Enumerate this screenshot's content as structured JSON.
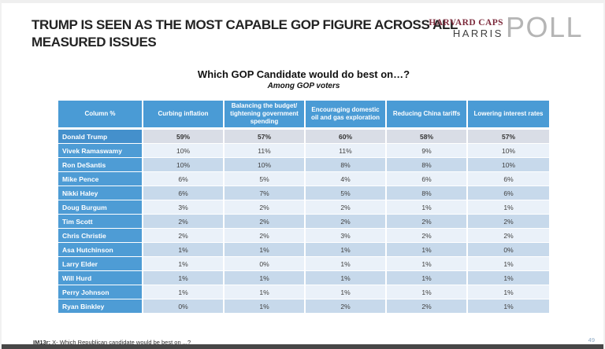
{
  "slide": {
    "title": "TRUMP IS SEEN AS THE MOST CAPABLE GOP FIGURE ACROSS ALL MEASURED ISSUES",
    "footnote_label": "IM13r:",
    "footnote_text": " X- Which Republican candidate would be best on ...?",
    "page_number": "49"
  },
  "logo": {
    "line1": "HARVARD CAPS",
    "line2": "HARRIS",
    "word": "POLL"
  },
  "chart_data": {
    "type": "table",
    "title": "Which GOP Candidate would do best on…?",
    "subtitle": "Among GOP voters",
    "columns": [
      "Column %",
      "Curbing inflation",
      "Balancing the budget/ tightening government spending",
      "Encouraging domestic oil and gas exploration",
      "Reducing China tariffs",
      "Lowering interest rates"
    ],
    "rows": [
      {
        "name": "Donald Trump",
        "values": [
          "59%",
          "57%",
          "60%",
          "58%",
          "57%"
        ],
        "highlight": true
      },
      {
        "name": "Vivek Ramaswamy",
        "values": [
          "10%",
          "11%",
          "11%",
          "9%",
          "10%"
        ],
        "highlight": false
      },
      {
        "name": "Ron DeSantis",
        "values": [
          "10%",
          "10%",
          "8%",
          "8%",
          "10%"
        ],
        "highlight": false
      },
      {
        "name": "Mike Pence",
        "values": [
          "6%",
          "5%",
          "4%",
          "6%",
          "6%"
        ],
        "highlight": false
      },
      {
        "name": "Nikki Haley",
        "values": [
          "6%",
          "7%",
          "5%",
          "8%",
          "6%"
        ],
        "highlight": false
      },
      {
        "name": "Doug Burgum",
        "values": [
          "3%",
          "2%",
          "2%",
          "1%",
          "1%"
        ],
        "highlight": false
      },
      {
        "name": "Tim Scott",
        "values": [
          "2%",
          "2%",
          "2%",
          "2%",
          "2%"
        ],
        "highlight": false
      },
      {
        "name": "Chris Christie",
        "values": [
          "2%",
          "2%",
          "3%",
          "2%",
          "2%"
        ],
        "highlight": false
      },
      {
        "name": "Asa Hutchinson",
        "values": [
          "1%",
          "1%",
          "1%",
          "1%",
          "0%"
        ],
        "highlight": false
      },
      {
        "name": "Larry Elder",
        "values": [
          "1%",
          "0%",
          "1%",
          "1%",
          "1%"
        ],
        "highlight": false
      },
      {
        "name": "Will Hurd",
        "values": [
          "1%",
          "1%",
          "1%",
          "1%",
          "1%"
        ],
        "highlight": false
      },
      {
        "name": "Perry Johnson",
        "values": [
          "1%",
          "1%",
          "1%",
          "1%",
          "1%"
        ],
        "highlight": false
      },
      {
        "name": "Ryan Binkley",
        "values": [
          "0%",
          "1%",
          "2%",
          "2%",
          "1%"
        ],
        "highlight": false
      }
    ]
  },
  "colors": {
    "header_blue": "#4a9bd5",
    "name_cell_blue": "#4e9cd5",
    "trump_row_bg": "#d9dde6",
    "band_row_bg": "#c7d9eb",
    "light_row_bg": "#eaf1f9",
    "logo_maroon": "#7d2b3c",
    "logo_gray": "#b5b5b5",
    "page_number_blue": "#8ca9c4",
    "bottom_bar": "#474747"
  }
}
